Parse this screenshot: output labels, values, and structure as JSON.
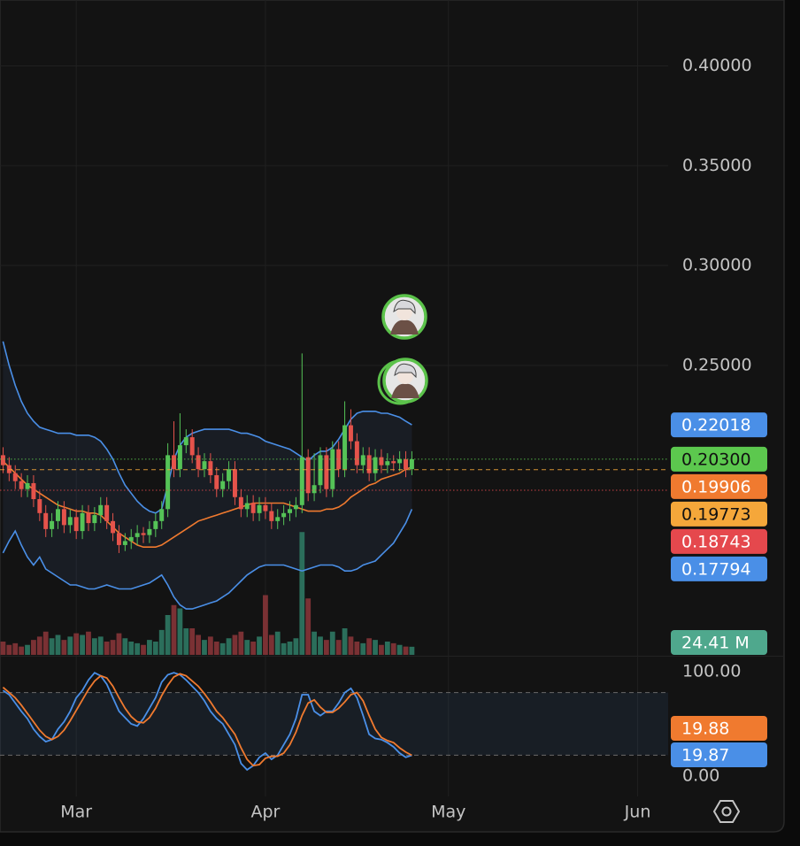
{
  "chart_data": [
    {
      "type": "candlestick",
      "x": [
        -12,
        -11,
        -10,
        -9,
        -8,
        -7,
        -6,
        -5,
        -4,
        -3,
        -2,
        -1,
        0,
        1,
        2,
        3,
        4,
        5,
        6,
        7,
        8,
        9,
        10,
        11,
        12,
        13,
        14,
        15,
        16,
        17,
        18,
        19,
        20,
        21,
        22,
        23,
        24,
        25,
        26,
        27,
        28,
        29,
        30,
        31,
        32,
        33,
        34,
        35,
        36,
        37,
        38,
        39,
        40,
        41,
        42,
        43,
        44,
        45,
        46,
        47,
        48,
        49,
        50,
        51,
        52,
        53,
        54,
        55
      ],
      "open": [
        0.205,
        0.2,
        0.196,
        0.192,
        0.188,
        0.191,
        0.183,
        0.176,
        0.168,
        0.172,
        0.178,
        0.17,
        0.174,
        0.167,
        0.176,
        0.171,
        0.175,
        0.18,
        0.172,
        0.166,
        0.16,
        0.162,
        0.164,
        0.166,
        0.165,
        0.168,
        0.172,
        0.178,
        0.205,
        0.198,
        0.21,
        0.214,
        0.205,
        0.198,
        0.202,
        0.195,
        0.188,
        0.192,
        0.198,
        0.184,
        0.178,
        0.181,
        0.176,
        0.18,
        0.177,
        0.172,
        0.174,
        0.176,
        0.178,
        0.18,
        0.204,
        0.186,
        0.19,
        0.205,
        0.188,
        0.208,
        0.198,
        0.22,
        0.212,
        0.2,
        0.205,
        0.196,
        0.204,
        0.2,
        0.202,
        0.201,
        0.203,
        0.198
      ],
      "high": [
        0.209,
        0.204,
        0.2,
        0.196,
        0.195,
        0.195,
        0.187,
        0.18,
        0.176,
        0.182,
        0.182,
        0.178,
        0.178,
        0.18,
        0.18,
        0.179,
        0.184,
        0.184,
        0.176,
        0.17,
        0.166,
        0.168,
        0.17,
        0.169,
        0.172,
        0.176,
        0.182,
        0.211,
        0.222,
        0.226,
        0.218,
        0.218,
        0.209,
        0.206,
        0.206,
        0.199,
        0.196,
        0.202,
        0.202,
        0.188,
        0.185,
        0.185,
        0.184,
        0.184,
        0.181,
        0.178,
        0.18,
        0.182,
        0.184,
        0.256,
        0.208,
        0.206,
        0.209,
        0.209,
        0.212,
        0.212,
        0.232,
        0.228,
        0.216,
        0.209,
        0.209,
        0.208,
        0.208,
        0.206,
        0.205,
        0.207,
        0.207,
        0.207
      ],
      "low": [
        0.196,
        0.192,
        0.188,
        0.184,
        0.184,
        0.179,
        0.172,
        0.164,
        0.164,
        0.168,
        0.166,
        0.166,
        0.163,
        0.163,
        0.167,
        0.167,
        0.171,
        0.168,
        0.162,
        0.156,
        0.157,
        0.158,
        0.16,
        0.161,
        0.161,
        0.164,
        0.168,
        0.174,
        0.194,
        0.194,
        0.206,
        0.201,
        0.194,
        0.194,
        0.191,
        0.184,
        0.184,
        0.188,
        0.18,
        0.174,
        0.174,
        0.172,
        0.172,
        0.173,
        0.168,
        0.168,
        0.17,
        0.172,
        0.174,
        0.176,
        0.182,
        0.182,
        0.186,
        0.184,
        0.184,
        0.194,
        0.194,
        0.208,
        0.196,
        0.196,
        0.192,
        0.192,
        0.196,
        0.196,
        0.197,
        0.197,
        0.194,
        0.195
      ],
      "close": [
        0.2,
        0.196,
        0.192,
        0.188,
        0.191,
        0.183,
        0.176,
        0.168,
        0.172,
        0.178,
        0.17,
        0.174,
        0.167,
        0.176,
        0.171,
        0.175,
        0.18,
        0.172,
        0.166,
        0.16,
        0.162,
        0.164,
        0.166,
        0.165,
        0.168,
        0.172,
        0.178,
        0.205,
        0.198,
        0.21,
        0.214,
        0.205,
        0.198,
        0.202,
        0.195,
        0.188,
        0.192,
        0.198,
        0.184,
        0.178,
        0.181,
        0.176,
        0.18,
        0.177,
        0.172,
        0.174,
        0.176,
        0.178,
        0.18,
        0.204,
        0.186,
        0.19,
        0.205,
        0.188,
        0.208,
        0.198,
        0.22,
        0.212,
        0.2,
        0.205,
        0.196,
        0.204,
        0.2,
        0.202,
        0.201,
        0.203,
        0.198,
        0.203
      ],
      "up_color": "#55c357",
      "down_color": "#e5534b",
      "xlim": [
        -12.5,
        97
      ],
      "xticks": [
        {
          "value": 0,
          "label": "Mar"
        },
        {
          "value": 31,
          "label": "Apr"
        },
        {
          "value": 61,
          "label": "May"
        },
        {
          "value": 92,
          "label": "Jun"
        }
      ],
      "ylim": [
        0.105,
        0.433
      ],
      "yticks": [
        {
          "value": 0.4,
          "label": "0.40000"
        },
        {
          "value": 0.35,
          "label": "0.35000"
        },
        {
          "value": 0.3,
          "label": "0.30000"
        },
        {
          "value": 0.25,
          "label": "0.25000"
        }
      ],
      "grid": true,
      "bands": {
        "fill": "rgba(60,90,130,0.16)",
        "series": [
          {
            "color": "#4a8fe7",
            "values": [
              0.262,
              0.25,
              0.24,
              0.232,
              0.226,
              0.222,
              0.219,
              0.218,
              0.217,
              0.216,
              0.216,
              0.216,
              0.215,
              0.215,
              0.215,
              0.214,
              0.212,
              0.208,
              0.203,
              0.196,
              0.19,
              0.186,
              0.182,
              0.179,
              0.177,
              0.176,
              0.178,
              0.19,
              0.203,
              0.21,
              0.214,
              0.216,
              0.217,
              0.218,
              0.218,
              0.218,
              0.218,
              0.218,
              0.217,
              0.216,
              0.216,
              0.215,
              0.214,
              0.212,
              0.211,
              0.21,
              0.209,
              0.208,
              0.206,
              0.204,
              0.202,
              0.205,
              0.207,
              0.207,
              0.209,
              0.213,
              0.218,
              0.223,
              0.226,
              0.227,
              0.227,
              0.227,
              0.226,
              0.226,
              0.225,
              0.224,
              0.222,
              0.22018
            ]
          },
          {
            "color": "#f07a2f",
            "values": [
              0.202,
              0.199,
              0.196,
              0.193,
              0.19,
              0.188,
              0.186,
              0.184,
              0.182,
              0.18,
              0.179,
              0.178,
              0.177,
              0.177,
              0.176,
              0.176,
              0.175,
              0.172,
              0.169,
              0.166,
              0.164,
              0.162,
              0.16,
              0.159,
              0.159,
              0.159,
              0.16,
              0.162,
              0.164,
              0.166,
              0.168,
              0.17,
              0.172,
              0.173,
              0.174,
              0.175,
              0.176,
              0.177,
              0.178,
              0.179,
              0.18,
              0.181,
              0.181,
              0.181,
              0.181,
              0.181,
              0.181,
              0.18,
              0.179,
              0.178,
              0.177,
              0.177,
              0.177,
              0.178,
              0.178,
              0.179,
              0.181,
              0.184,
              0.186,
              0.188,
              0.19,
              0.191,
              0.193,
              0.194,
              0.195,
              0.196,
              0.198,
              0.19906
            ]
          },
          {
            "color": "#4a8fe7",
            "values": [
              0.156,
              0.162,
              0.167,
              0.16,
              0.154,
              0.15,
              0.154,
              0.148,
              0.146,
              0.144,
              0.142,
              0.14,
              0.14,
              0.139,
              0.138,
              0.138,
              0.139,
              0.14,
              0.139,
              0.138,
              0.138,
              0.138,
              0.139,
              0.14,
              0.141,
              0.143,
              0.145,
              0.14,
              0.134,
              0.13,
              0.128,
              0.128,
              0.129,
              0.13,
              0.131,
              0.132,
              0.134,
              0.136,
              0.139,
              0.142,
              0.145,
              0.147,
              0.149,
              0.15,
              0.15,
              0.15,
              0.15,
              0.149,
              0.148,
              0.147,
              0.148,
              0.149,
              0.15,
              0.15,
              0.15,
              0.149,
              0.147,
              0.147,
              0.148,
              0.15,
              0.151,
              0.152,
              0.155,
              0.158,
              0.161,
              0.166,
              0.171,
              0.17794
            ]
          }
        ]
      },
      "volume": {
        "ylim": [
          0,
          400
        ],
        "up_color": "#2b6e5b",
        "down_color": "#7a3134",
        "label_color": "#4fa88d",
        "values": [
          40,
          30,
          35,
          25,
          30,
          45,
          55,
          70,
          50,
          60,
          45,
          55,
          65,
          60,
          70,
          50,
          55,
          40,
          45,
          65,
          50,
          40,
          35,
          30,
          45,
          40,
          75,
          120,
          150,
          140,
          80,
          80,
          60,
          45,
          55,
          40,
          35,
          50,
          60,
          70,
          45,
          40,
          55,
          180,
          60,
          70,
          35,
          40,
          50,
          370,
          170,
          70,
          55,
          45,
          70,
          45,
          80,
          55,
          40,
          35,
          50,
          45,
          30,
          40,
          35,
          30,
          25,
          24.41
        ],
        "value_labels": [
          null,
          null,
          null,
          null,
          null,
          null,
          null,
          null,
          null,
          null,
          null,
          null,
          null,
          null,
          null,
          null,
          null,
          null,
          null,
          null,
          null,
          null,
          null,
          null,
          null,
          null,
          null,
          null,
          null,
          null,
          null,
          null,
          null,
          null,
          null,
          null,
          null,
          null,
          null,
          null,
          null,
          null,
          null,
          null,
          null,
          null,
          null,
          null,
          null,
          null,
          null,
          null,
          null,
          null,
          null,
          null,
          null,
          null,
          null,
          null,
          null,
          null,
          null,
          null,
          null,
          null,
          null,
          "24.41 M"
        ]
      },
      "price_labels": [
        {
          "value": 0.22018,
          "label": "0.22018",
          "color": "#4a8fe7",
          "text_color": "#ffffff",
          "line": "none"
        },
        {
          "value": 0.203,
          "label": "0.20300",
          "color": "#5cc84e",
          "text_color": "#111111",
          "line": "dotted"
        },
        {
          "value": 0.19906,
          "label": "0.19906",
          "color": "#f07a2f",
          "text_color": "#ffffff",
          "line": "none"
        },
        {
          "value": 0.19773,
          "label": "0.19773",
          "color": "#f5a73a",
          "text_color": "#111111",
          "line": "dashed"
        },
        {
          "value": 0.18743,
          "label": "0.18743",
          "color": "#e5484d",
          "text_color": "#ffffff",
          "line": "dotted"
        },
        {
          "value": 0.17794,
          "label": "0.17794",
          "color": "#4a8fe7",
          "text_color": "#ffffff",
          "line": "none"
        }
      ]
    },
    {
      "type": "line",
      "x": [
        -12,
        -11,
        -10,
        -9,
        -8,
        -7,
        -6,
        -5,
        -4,
        -3,
        -2,
        -1,
        0,
        1,
        2,
        3,
        4,
        5,
        6,
        7,
        8,
        9,
        10,
        11,
        12,
        13,
        14,
        15,
        16,
        17,
        18,
        19,
        20,
        21,
        22,
        23,
        24,
        25,
        26,
        27,
        28,
        29,
        30,
        31,
        32,
        33,
        34,
        35,
        36,
        37,
        38,
        39,
        40,
        41,
        42,
        43,
        44,
        45,
        46,
        47,
        48,
        49,
        50,
        51,
        52,
        53,
        54,
        55
      ],
      "xlim": [
        -12.5,
        97
      ],
      "ylim": [
        -19.5,
        114.4
      ],
      "yticks": [
        {
          "value": 100,
          "label": "100.00"
        },
        {
          "value": 0,
          "label": "0.00"
        }
      ],
      "levels": [
        80,
        20
      ],
      "level_fill": "rgba(60,100,150,0.14)",
      "series": [
        {
          "color": "#4a8fe7",
          "values": [
            82,
            78,
            70,
            62,
            55,
            45,
            38,
            33,
            35,
            45,
            52,
            62,
            75,
            82,
            92,
            99,
            96,
            88,
            75,
            62,
            56,
            50,
            48,
            55,
            65,
            75,
            90,
            97,
            99,
            97,
            92,
            86,
            80,
            72,
            62,
            55,
            50,
            40,
            30,
            12,
            6,
            10,
            18,
            22,
            16,
            20,
            30,
            40,
            55,
            78,
            78,
            62,
            58,
            62,
            62,
            70,
            80,
            84,
            75,
            58,
            40,
            36,
            35,
            32,
            28,
            22,
            18,
            19.87
          ]
        },
        {
          "color": "#f07a2f",
          "values": [
            85,
            80,
            75,
            68,
            60,
            52,
            44,
            38,
            35,
            38,
            44,
            53,
            63,
            73,
            83,
            91,
            96,
            94,
            86,
            75,
            65,
            57,
            52,
            51,
            56,
            65,
            77,
            87,
            95,
            98,
            96,
            91,
            86,
            79,
            71,
            62,
            56,
            48,
            40,
            27,
            16,
            10,
            11,
            17,
            19,
            19,
            22,
            30,
            42,
            58,
            70,
            73,
            66,
            61,
            61,
            65,
            71,
            78,
            80,
            72,
            58,
            45,
            37,
            34,
            32,
            27,
            23,
            19.88
          ]
        }
      ]
    }
  ]
}
